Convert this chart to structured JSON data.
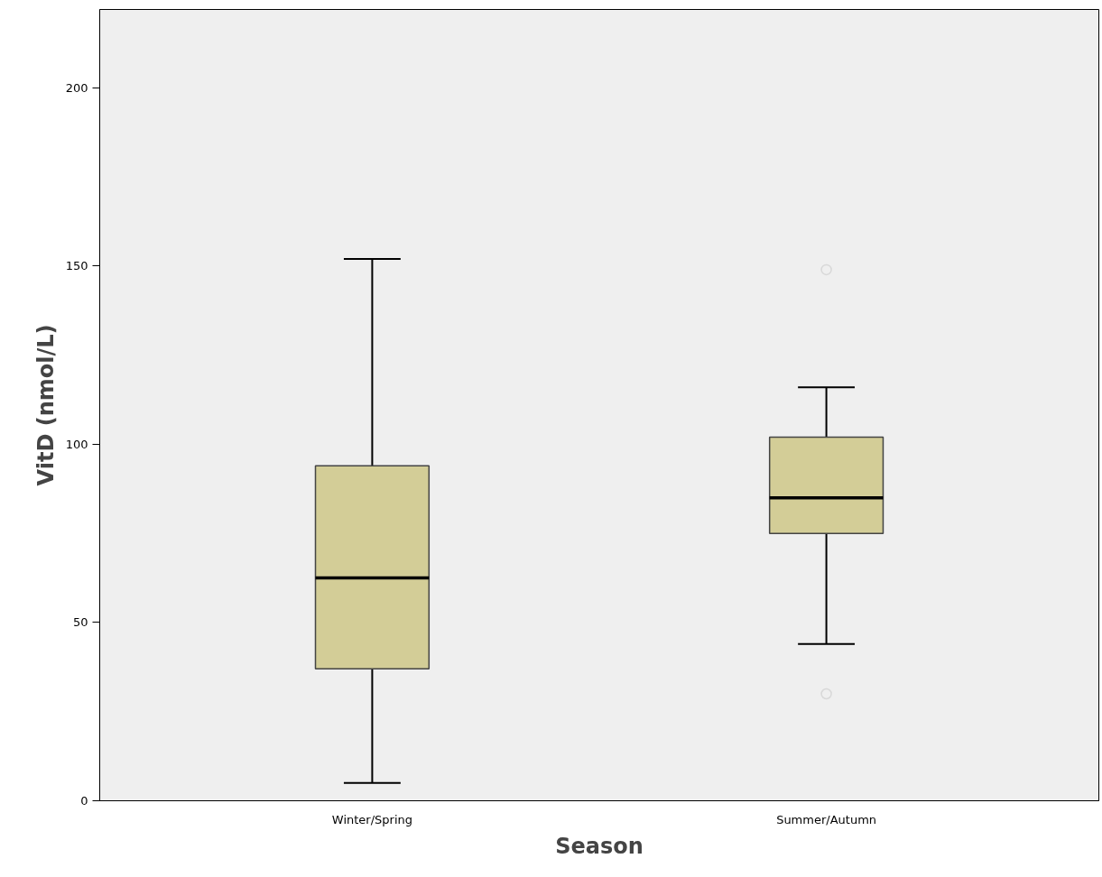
{
  "chart_data": {
    "type": "box",
    "xlabel": "Season",
    "ylabel": "VitD (nmol/L)",
    "categories": [
      "Winter/Spring",
      "Summer/Autumn"
    ],
    "series": [
      {
        "color": "#d3cd97",
        "boxes": [
          {
            "low": 5,
            "q1": 37,
            "median": 62.5,
            "q3": 94,
            "high": 152
          },
          {
            "low": 44,
            "q1": 75,
            "median": 85,
            "q3": 102,
            "high": 116,
            "outliers": [
              149,
              30
            ]
          }
        ]
      }
    ],
    "ylim": [
      0,
      222
    ],
    "yticks": [
      0,
      50,
      100,
      150,
      200
    ],
    "grid": false,
    "marker": "circle"
  }
}
